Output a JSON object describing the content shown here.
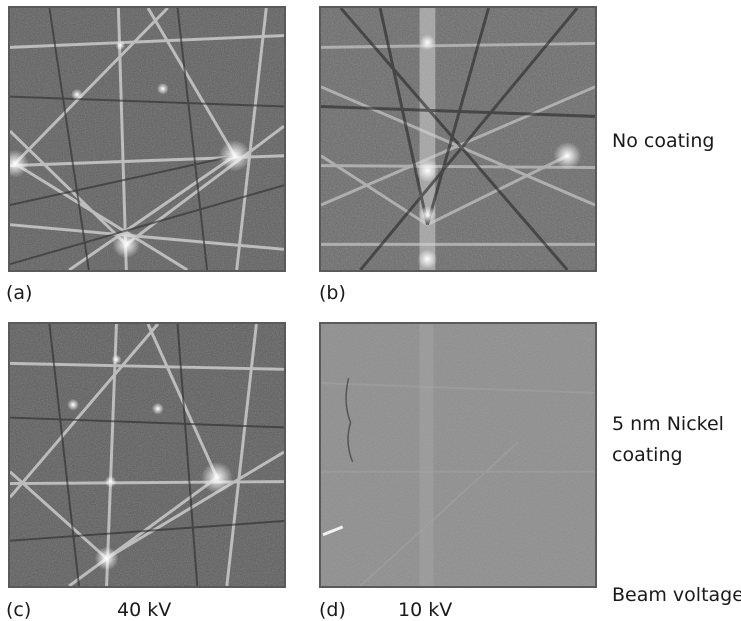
{
  "panels": [
    {
      "id": "a",
      "label": "(a)",
      "voltage": ""
    },
    {
      "id": "b",
      "label": "(b)",
      "voltage": ""
    },
    {
      "id": "c",
      "label": "(c)",
      "voltage": "40 kV"
    },
    {
      "id": "d",
      "label": "(d)",
      "voltage": "10 kV"
    }
  ],
  "row_labels": {
    "top": "No coating",
    "bottom": "5 nm Nickel\ncoating"
  },
  "axis_label": "Beam voltage",
  "colors": {
    "pattern_bg": "#5e5e5e",
    "band_light": "#e8e8e8",
    "band_dark": "#2a2a2a",
    "faint_bg": "#8a8a8a"
  }
}
